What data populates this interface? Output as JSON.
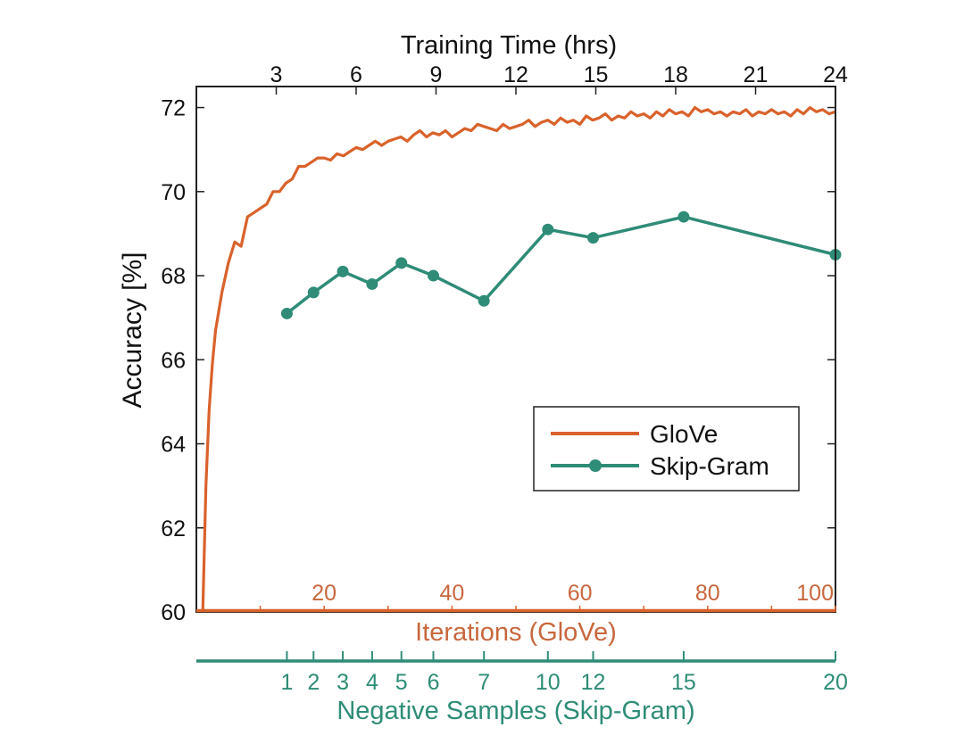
{
  "chart_data": {
    "type": "line",
    "y_axis": {
      "label": "Accuracy [%]",
      "ticks": [
        "60",
        "62",
        "64",
        "66",
        "68",
        "70",
        "72"
      ],
      "range": [
        60,
        72.5
      ]
    },
    "top_axis": {
      "label": "Training Time (hrs)",
      "ticks": [
        "3",
        "6",
        "9",
        "12",
        "15",
        "18",
        "21",
        "24"
      ],
      "range": [
        0,
        24
      ]
    },
    "glove_axis": {
      "label": "Iterations (GloVe)",
      "ticks": [
        "20",
        "40",
        "60",
        "80",
        "100"
      ],
      "range": [
        0,
        100
      ]
    },
    "skipgram_axis": {
      "label": "Negative Samples (Skip-Gram)",
      "ticks": [
        "1",
        "2",
        "3",
        "4",
        "5",
        "6",
        "7",
        "10",
        "12",
        "15",
        "20"
      ],
      "tick_hours": [
        3.4,
        4.4,
        5.5,
        6.6,
        7.7,
        8.9,
        10.8,
        13.2,
        14.9,
        18.3,
        24
      ]
    },
    "series": [
      {
        "name": "GloVe",
        "color": "#d9622b",
        "marker": "none",
        "points_iteration_accuracy": [
          [
            1,
            60.0
          ],
          [
            1.5,
            63.0
          ],
          [
            2,
            64.8
          ],
          [
            2.5,
            65.9
          ],
          [
            3,
            66.7
          ],
          [
            4,
            67.6
          ],
          [
            5,
            68.3
          ],
          [
            6,
            68.8
          ],
          [
            7,
            68.7
          ],
          [
            8,
            69.4
          ],
          [
            9,
            69.5
          ],
          [
            10,
            69.6
          ],
          [
            11,
            69.7
          ],
          [
            12,
            70.0
          ],
          [
            13,
            70.0
          ],
          [
            14,
            70.2
          ],
          [
            15,
            70.3
          ],
          [
            16,
            70.6
          ],
          [
            17,
            70.6
          ],
          [
            18,
            70.7
          ],
          [
            19,
            70.8
          ],
          [
            20,
            70.8
          ],
          [
            21,
            70.75
          ],
          [
            22,
            70.9
          ],
          [
            23,
            70.85
          ],
          [
            24,
            70.95
          ],
          [
            25,
            71.05
          ],
          [
            26,
            71.0
          ],
          [
            27,
            71.1
          ],
          [
            28,
            71.2
          ],
          [
            29,
            71.1
          ],
          [
            30,
            71.2
          ],
          [
            31,
            71.25
          ],
          [
            32,
            71.3
          ],
          [
            33,
            71.2
          ],
          [
            34,
            71.35
          ],
          [
            35,
            71.45
          ],
          [
            36,
            71.3
          ],
          [
            37,
            71.4
          ],
          [
            38,
            71.35
          ],
          [
            39,
            71.45
          ],
          [
            40,
            71.3
          ],
          [
            41,
            71.4
          ],
          [
            42,
            71.5
          ],
          [
            43,
            71.45
          ],
          [
            44,
            71.6
          ],
          [
            45,
            71.55
          ],
          [
            46,
            71.5
          ],
          [
            47,
            71.45
          ],
          [
            48,
            71.6
          ],
          [
            49,
            71.5
          ],
          [
            50,
            71.55
          ],
          [
            51,
            71.6
          ],
          [
            52,
            71.7
          ],
          [
            53,
            71.55
          ],
          [
            54,
            71.65
          ],
          [
            55,
            71.7
          ],
          [
            56,
            71.6
          ],
          [
            57,
            71.75
          ],
          [
            58,
            71.65
          ],
          [
            59,
            71.7
          ],
          [
            60,
            71.6
          ],
          [
            61,
            71.8
          ],
          [
            62,
            71.7
          ],
          [
            63,
            71.75
          ],
          [
            64,
            71.85
          ],
          [
            65,
            71.7
          ],
          [
            66,
            71.8
          ],
          [
            67,
            71.75
          ],
          [
            68,
            71.9
          ],
          [
            69,
            71.8
          ],
          [
            70,
            71.85
          ],
          [
            71,
            71.75
          ],
          [
            72,
            71.9
          ],
          [
            73,
            71.8
          ],
          [
            74,
            71.95
          ],
          [
            75,
            71.85
          ],
          [
            76,
            71.9
          ],
          [
            77,
            71.8
          ],
          [
            78,
            72.0
          ],
          [
            79,
            71.9
          ],
          [
            80,
            71.95
          ],
          [
            81,
            71.85
          ],
          [
            82,
            71.9
          ],
          [
            83,
            71.8
          ],
          [
            84,
            71.9
          ],
          [
            85,
            71.85
          ],
          [
            86,
            71.95
          ],
          [
            87,
            71.8
          ],
          [
            88,
            71.9
          ],
          [
            89,
            71.85
          ],
          [
            90,
            71.95
          ],
          [
            91,
            71.85
          ],
          [
            92,
            71.9
          ],
          [
            93,
            71.8
          ],
          [
            94,
            71.95
          ],
          [
            95,
            71.85
          ],
          [
            96,
            72.0
          ],
          [
            97,
            71.9
          ],
          [
            98,
            71.95
          ],
          [
            99,
            71.85
          ],
          [
            100,
            71.9
          ]
        ]
      },
      {
        "name": "Skip-Gram",
        "color": "#2e8c77",
        "marker": "circle",
        "negative_samples": [
          1,
          2,
          3,
          4,
          5,
          6,
          7,
          10,
          12,
          15,
          20
        ],
        "accuracy": [
          67.1,
          67.6,
          68.1,
          67.8,
          68.3,
          68.0,
          67.4,
          69.1,
          68.9,
          69.4,
          68.5
        ]
      }
    ],
    "legend": {
      "position": "lower-right-center",
      "entries": [
        "GloVe",
        "Skip-Gram"
      ]
    }
  }
}
